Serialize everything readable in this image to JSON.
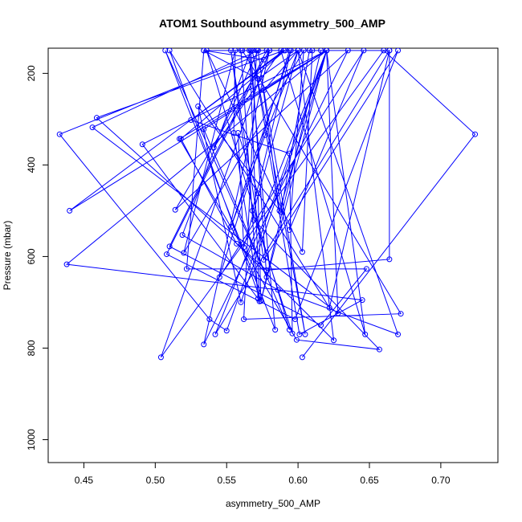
{
  "chart_data": {
    "type": "line",
    "title": "ATOM1 Southbound asymmetry_500_AMP",
    "xlabel": "asymmetry_500_AMP",
    "ylabel": "Pressure (mbar)",
    "xlim": [
      0.425,
      0.74
    ],
    "ylim": [
      1050,
      145
    ],
    "y_reversed": true,
    "grid": false,
    "legend": "none",
    "x_ticks": [
      0.45,
      0.5,
      0.55,
      0.6,
      0.65,
      0.7
    ],
    "x_tick_labels": [
      "0.45",
      "0.50",
      "0.55",
      "0.60",
      "0.65",
      "0.70"
    ],
    "y_ticks": [
      200,
      400,
      600,
      800,
      1000
    ],
    "y_tick_labels": [
      "200",
      "400",
      "600",
      "800",
      "1000"
    ],
    "color": "#0000ff",
    "series": [
      {
        "points": [
          [
            0.603,
            820
          ],
          [
            0.724,
            333
          ],
          [
            0.66,
            150
          ],
          [
            0.504,
            820
          ],
          [
            0.58,
            150
          ],
          [
            0.534,
            792
          ],
          [
            0.635,
            150
          ],
          [
            0.514,
            498
          ],
          [
            0.58,
            150
          ],
          [
            0.433,
            333
          ],
          [
            0.538,
            737
          ],
          [
            0.55,
            762
          ],
          [
            0.62,
            150
          ],
          [
            0.44,
            500
          ],
          [
            0.59,
            150
          ],
          [
            0.459,
            297
          ],
          [
            0.578,
            630
          ],
          [
            0.664,
            606
          ],
          [
            0.664,
            150
          ],
          [
            0.622,
            712
          ],
          [
            0.51,
            150
          ],
          [
            0.574,
            697
          ],
          [
            0.572,
            462
          ],
          [
            0.558,
            330
          ],
          [
            0.562,
            580
          ],
          [
            0.6,
            150
          ],
          [
            0.664,
            150
          ],
          [
            0.542,
            770
          ],
          [
            0.62,
            150
          ],
          [
            0.628,
            724
          ],
          [
            0.456,
            318
          ],
          [
            0.572,
            150
          ],
          [
            0.541,
            362
          ],
          [
            0.588,
            150
          ],
          [
            0.647,
            770
          ],
          [
            0.62,
            150
          ],
          [
            0.491,
            355
          ],
          [
            0.572,
            692
          ],
          [
            0.56,
            150
          ],
          [
            0.61,
            150
          ],
          [
            0.603,
            590
          ],
          [
            0.536,
            150
          ],
          [
            0.594,
            760
          ],
          [
            0.534,
            322
          ],
          [
            0.62,
            150
          ],
          [
            0.438,
            617
          ],
          [
            0.645,
            695
          ],
          [
            0.601,
            770
          ],
          [
            0.568,
            150
          ],
          [
            0.605,
            770
          ],
          [
            0.576,
            237
          ],
          [
            0.6,
            150
          ],
          [
            0.577,
            335
          ],
          [
            0.553,
            535
          ],
          [
            0.595,
            150
          ],
          [
            0.568,
            500
          ],
          [
            0.596,
            768
          ],
          [
            0.594,
            375
          ],
          [
            0.525,
            302
          ],
          [
            0.591,
            150
          ],
          [
            0.518,
            343
          ],
          [
            0.557,
            572
          ],
          [
            0.625,
            783
          ],
          [
            0.6,
            150
          ],
          [
            0.62,
            150
          ],
          [
            0.56,
            700
          ],
          [
            0.53,
            272
          ],
          [
            0.588,
            503
          ],
          [
            0.608,
            150
          ],
          [
            0.578,
            150
          ],
          [
            0.51,
            578
          ],
          [
            0.616,
            750
          ],
          [
            0.648,
            627
          ],
          [
            0.522,
            627
          ],
          [
            0.534,
            150
          ],
          [
            0.572,
            150
          ],
          [
            0.587,
            500
          ],
          [
            0.62,
            150
          ],
          [
            0.574,
            697
          ],
          [
            0.616,
            150
          ],
          [
            0.571,
            150
          ],
          [
            0.562,
            737
          ],
          [
            0.672,
            725
          ],
          [
            0.561,
            150
          ],
          [
            0.594,
            150
          ],
          [
            0.545,
            645
          ],
          [
            0.646,
            150
          ],
          [
            0.594,
            542
          ],
          [
            0.604,
            150
          ],
          [
            0.52,
            592
          ],
          [
            0.556,
            150
          ],
          [
            0.555,
            330
          ],
          [
            0.573,
            698
          ],
          [
            0.566,
            150
          ],
          [
            0.584,
            760
          ],
          [
            0.507,
            150
          ],
          [
            0.578,
            645
          ],
          [
            0.567,
            150
          ],
          [
            0.519,
            553
          ],
          [
            0.586,
            673
          ],
          [
            0.67,
            770
          ],
          [
            0.6,
            150
          ],
          [
            0.572,
            212
          ],
          [
            0.534,
            150
          ],
          [
            0.576,
            170
          ],
          [
            0.508,
            595
          ],
          [
            0.598,
            737
          ],
          [
            0.67,
            150
          ],
          [
            0.576,
            607
          ],
          [
            0.553,
            150
          ],
          [
            0.569,
            520
          ],
          [
            0.657,
            803
          ],
          [
            0.599,
            782
          ],
          [
            0.517,
            343
          ],
          [
            0.62,
            150
          ]
        ]
      }
    ]
  }
}
